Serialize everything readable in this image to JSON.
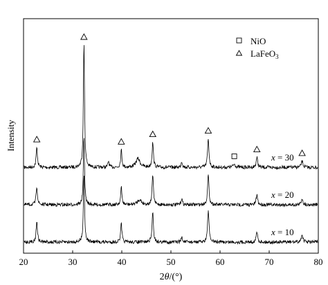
{
  "chart_data": {
    "type": "line",
    "title": "",
    "xlabel": "2θ/(°)",
    "ylabel": "Intensity",
    "xlim": [
      20,
      80
    ],
    "xticks": [
      20,
      30,
      40,
      50,
      60,
      70,
      80
    ],
    "y_ticks_shown": false,
    "grid": false,
    "legend_position": "top-right",
    "legend": [
      {
        "symbol": "square-open",
        "label": "NiO"
      },
      {
        "symbol": "triangle-open",
        "label": "LaFeO3"
      }
    ],
    "series": [
      {
        "name": "x = 30",
        "baseline": 0.0,
        "peaks": [
          {
            "x": 22.7,
            "height": 0.16,
            "width": 0.16
          },
          {
            "x": 32.3,
            "height": 1.0,
            "width": 0.14
          },
          {
            "x": 37.3,
            "height": 0.05,
            "width": 0.15
          },
          {
            "x": 39.9,
            "height": 0.14,
            "width": 0.15
          },
          {
            "x": 43.3,
            "height": 0.07,
            "width": 0.5
          },
          {
            "x": 46.3,
            "height": 0.2,
            "width": 0.16
          },
          {
            "x": 52.2,
            "height": 0.05,
            "width": 0.16
          },
          {
            "x": 57.6,
            "height": 0.23,
            "width": 0.17
          },
          {
            "x": 62.9,
            "height": 0.025,
            "width": 0.3
          },
          {
            "x": 67.5,
            "height": 0.08,
            "width": 0.18
          },
          {
            "x": 76.7,
            "height": 0.05,
            "width": 0.2
          }
        ]
      },
      {
        "name": "x = 20",
        "baseline": 0.0,
        "peaks": [
          {
            "x": 22.7,
            "height": 0.15,
            "width": 0.16
          },
          {
            "x": 32.3,
            "height": 0.55,
            "width": 0.14
          },
          {
            "x": 39.9,
            "height": 0.14,
            "width": 0.15
          },
          {
            "x": 43.6,
            "height": 0.04,
            "width": 0.5
          },
          {
            "x": 46.3,
            "height": 0.24,
            "width": 0.16
          },
          {
            "x": 52.2,
            "height": 0.05,
            "width": 0.16
          },
          {
            "x": 57.6,
            "height": 0.24,
            "width": 0.17
          },
          {
            "x": 67.5,
            "height": 0.08,
            "width": 0.18
          },
          {
            "x": 76.7,
            "height": 0.05,
            "width": 0.2
          }
        ]
      },
      {
        "name": "x = 10",
        "baseline": 0.0,
        "peaks": [
          {
            "x": 22.7,
            "height": 0.17,
            "width": 0.16
          },
          {
            "x": 32.3,
            "height": 0.55,
            "width": 0.14
          },
          {
            "x": 39.9,
            "height": 0.15,
            "width": 0.15
          },
          {
            "x": 46.3,
            "height": 0.25,
            "width": 0.16
          },
          {
            "x": 52.2,
            "height": 0.04,
            "width": 0.16
          },
          {
            "x": 57.6,
            "height": 0.26,
            "width": 0.17
          },
          {
            "x": 67.5,
            "height": 0.08,
            "width": 0.18
          },
          {
            "x": 76.7,
            "height": 0.06,
            "width": 0.2
          }
        ]
      }
    ],
    "annotations": [
      {
        "symbol": "triangle-open",
        "x": 22.7
      },
      {
        "symbol": "triangle-open",
        "x": 32.3
      },
      {
        "symbol": "triangle-open",
        "x": 39.9
      },
      {
        "symbol": "triangle-open",
        "x": 46.3
      },
      {
        "symbol": "triangle-open",
        "x": 57.6
      },
      {
        "symbol": "square-open",
        "x": 62.9
      },
      {
        "symbol": "triangle-open",
        "x": 67.5
      },
      {
        "symbol": "triangle-open",
        "x": 76.7
      }
    ]
  }
}
